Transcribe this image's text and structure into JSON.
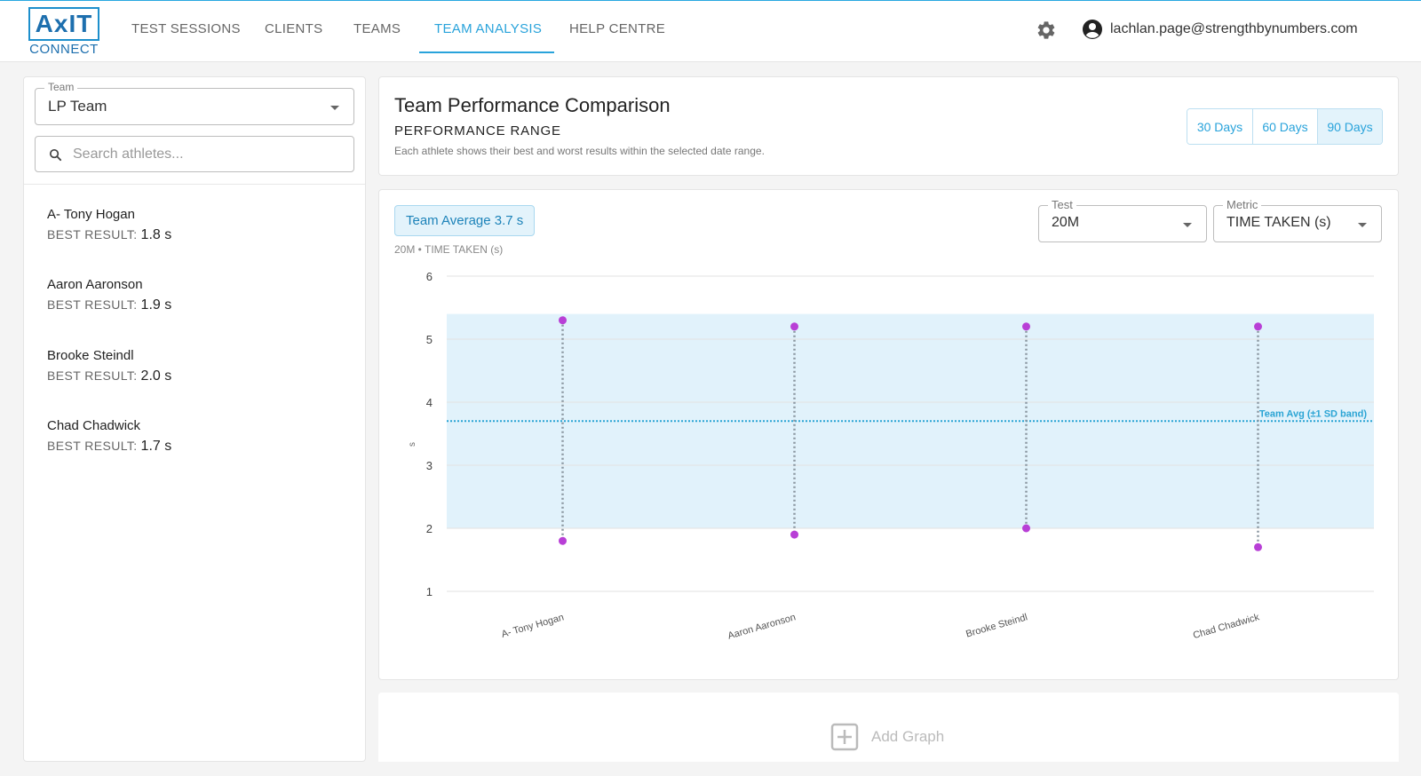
{
  "app": {
    "logo_text": "AxIT",
    "logo_sub": "CONNECT"
  },
  "nav": {
    "items": [
      {
        "label": "TEST SESSIONS"
      },
      {
        "label": "CLIENTS"
      },
      {
        "label": "TEAMS"
      },
      {
        "label": "TEAM ANALYSIS"
      },
      {
        "label": "HELP CENTRE"
      }
    ],
    "active": "TEAM ANALYSIS",
    "settings_icon": "gear-icon",
    "user_icon": "account-circle-icon",
    "user_email": "lachlan.page@strengthbynumbers.com"
  },
  "sidebar": {
    "team_label": "Team",
    "team_value": "LP Team",
    "search_placeholder": "Search athletes...",
    "best_prefix": "BEST RESULT:",
    "athletes": [
      {
        "name": "A- Tony Hogan",
        "best": "1.8 s"
      },
      {
        "name": "Aaron Aaronson",
        "best": "1.9 s"
      },
      {
        "name": "Brooke Steindl",
        "best": "2.0 s"
      },
      {
        "name": "Chad Chadwick",
        "best": "1.7 s"
      }
    ]
  },
  "header": {
    "title": "Team Performance Comparison",
    "subtitle": "PERFORMANCE RANGE",
    "description": "Each athlete shows their best and worst results within the selected date range.",
    "ranges": [
      "30 Days",
      "60 Days",
      "90 Days"
    ],
    "active_range": "90 Days"
  },
  "chart_panel": {
    "team_average": "Team Average 3.7 s",
    "caption": "20M • TIME TAKEN (s)",
    "test_label": "Test",
    "test_value": "20M",
    "metric_label": "Metric",
    "metric_value": "TIME TAKEN (s)"
  },
  "chart_data": {
    "type": "scatter",
    "categories": [
      "A- Tony Hogan",
      "Aaron Aaronson",
      "Brooke Steindl",
      "Chad Chadwick"
    ],
    "series": [
      {
        "name": "",
        "values": [
          5.3,
          5.2,
          5.2,
          5.2
        ]
      },
      {
        "name": "",
        "values": [
          1.8,
          1.9,
          2.0,
          1.7
        ]
      }
    ],
    "ylabel": "s",
    "ylim": [
      1,
      6
    ],
    "yticks": [
      1,
      2,
      3,
      4,
      5,
      6
    ],
    "team_avg": 3.7,
    "sd_band": [
      2.0,
      5.4
    ],
    "avg_label": "Team Avg (±1 SD band)",
    "grid": true,
    "colors": {
      "point": "#b83fd6",
      "range_line": "#8a96a0",
      "avg_line": "#2aa4d4",
      "band": "#e1f2fb"
    }
  },
  "add_graph": {
    "label": "Add Graph",
    "icon": "plus-box-icon"
  }
}
